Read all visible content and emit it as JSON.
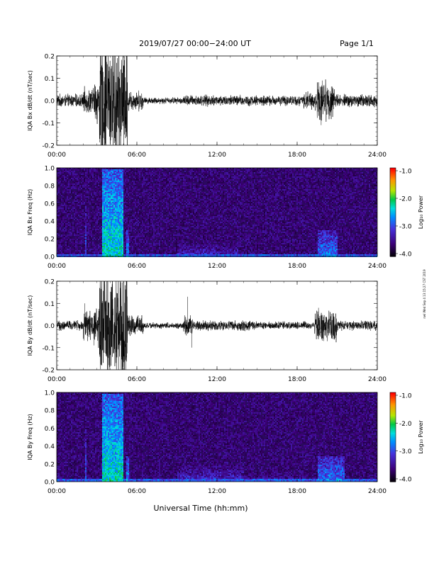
{
  "header": {
    "title": "2019/07/27  00:00−24:00 UT",
    "page": "Page 1/1"
  },
  "side_note": "nwl Wed Sep 4 13:15:27 CST 2019",
  "chart_data": [
    {
      "type": "line",
      "ylabel": "IQA Bx dB/dt (nT/sec)",
      "ylim": [
        -0.2,
        0.2
      ],
      "yticks": [
        "0.2",
        "0.1",
        "0.0",
        "-0.1",
        "-0.2"
      ],
      "xlim": [
        0,
        24
      ],
      "xticks": [
        "00:00",
        "06:00",
        "12:00",
        "18:00",
        "24:00"
      ],
      "activity": [
        {
          "start": 0.0,
          "end": 2.0,
          "amplitude": 0.025
        },
        {
          "start": 2.0,
          "end": 2.8,
          "amplitude": 0.05
        },
        {
          "start": 2.8,
          "end": 3.2,
          "amplitude": 0.09
        },
        {
          "start": 3.2,
          "end": 5.3,
          "amplitude": 0.25
        },
        {
          "start": 5.3,
          "end": 6.5,
          "amplitude": 0.04
        },
        {
          "start": 6.5,
          "end": 9.5,
          "amplitude": 0.013
        },
        {
          "start": 9.5,
          "end": 14.5,
          "amplitude": 0.022
        },
        {
          "start": 14.5,
          "end": 18.5,
          "amplitude": 0.02
        },
        {
          "start": 18.5,
          "end": 19.5,
          "amplitude": 0.035
        },
        {
          "start": 19.5,
          "end": 20.8,
          "amplitude": 0.08
        },
        {
          "start": 20.8,
          "end": 24.0,
          "amplitude": 0.025
        }
      ]
    },
    {
      "type": "heatmap",
      "ylabel": "IQA Bx Freq (Hz)",
      "ylim": [
        0.0,
        1.0
      ],
      "yticks": [
        "1.0",
        "0.8",
        "0.6",
        "0.4",
        "0.2",
        "0.0"
      ],
      "xlim": [
        0,
        24
      ],
      "xticks": [
        "00:00",
        "06:00",
        "12:00",
        "18:00",
        "24:00"
      ],
      "colorbar": {
        "label": "Log₁₀ Power",
        "ticks": [
          "-1.0",
          "-2.0",
          "-3.0",
          "-4.0"
        ],
        "range": [
          -4.0,
          -1.0
        ]
      },
      "bursts": [
        {
          "start": 2.1,
          "end": 2.2,
          "fmax": 0.6,
          "level": -2.9
        },
        {
          "start": 3.3,
          "end": 4.9,
          "fmax": 1.0,
          "level": -2.3
        },
        {
          "start": 5.1,
          "end": 5.4,
          "fmax": 0.3,
          "level": -2.6
        },
        {
          "start": 9.0,
          "end": 13.5,
          "fmax": 0.15,
          "level": -3.1
        },
        {
          "start": 19.5,
          "end": 21.0,
          "fmax": 0.3,
          "level": -2.7
        }
      ]
    },
    {
      "type": "line",
      "ylabel": "IQA By dB/dt (nT/sec)",
      "ylim": [
        -0.2,
        0.2
      ],
      "yticks": [
        "0.2",
        "0.1",
        "0.0",
        "-0.1",
        "-0.2"
      ],
      "xlim": [
        0,
        24
      ],
      "xticks": [
        "00:00",
        "06:00",
        "12:00",
        "18:00",
        "24:00"
      ],
      "activity": [
        {
          "start": 0.0,
          "end": 2.0,
          "amplitude": 0.02
        },
        {
          "start": 2.0,
          "end": 2.8,
          "amplitude": 0.06
        },
        {
          "start": 2.8,
          "end": 3.2,
          "amplitude": 0.09
        },
        {
          "start": 3.2,
          "end": 5.3,
          "amplitude": 0.25
        },
        {
          "start": 5.3,
          "end": 6.5,
          "amplitude": 0.04
        },
        {
          "start": 6.5,
          "end": 9.5,
          "amplitude": 0.012
        },
        {
          "start": 9.5,
          "end": 10.2,
          "amplitude": 0.04
        },
        {
          "start": 10.2,
          "end": 14.5,
          "amplitude": 0.02
        },
        {
          "start": 14.5,
          "end": 19.3,
          "amplitude": 0.015
        },
        {
          "start": 19.3,
          "end": 21.0,
          "amplitude": 0.06
        },
        {
          "start": 21.0,
          "end": 24.0,
          "amplitude": 0.02
        }
      ]
    },
    {
      "type": "heatmap",
      "ylabel": "IQA By Freq (Hz)",
      "ylim": [
        0.0,
        1.0
      ],
      "yticks": [
        "1.0",
        "0.8",
        "0.6",
        "0.4",
        "0.2",
        "0.0"
      ],
      "xlim": [
        0,
        24
      ],
      "xticks": [
        "00:00",
        "06:00",
        "12:00",
        "18:00",
        "24:00"
      ],
      "colorbar": {
        "label": "Log₁₀ Power",
        "ticks": [
          "-1.0",
          "-2.0",
          "-3.0",
          "-4.0"
        ],
        "range": [
          -4.0,
          -1.0
        ]
      },
      "bursts": [
        {
          "start": 2.1,
          "end": 2.2,
          "fmax": 0.6,
          "level": -2.9
        },
        {
          "start": 3.3,
          "end": 4.9,
          "fmax": 1.0,
          "level": -2.3
        },
        {
          "start": 5.1,
          "end": 5.4,
          "fmax": 0.3,
          "level": -2.6
        },
        {
          "start": 9.0,
          "end": 14.0,
          "fmax": 0.2,
          "level": -3.1
        },
        {
          "start": 14.0,
          "end": 18.5,
          "fmax": 0.12,
          "level": -3.3
        },
        {
          "start": 19.5,
          "end": 21.5,
          "fmax": 0.3,
          "level": -2.7
        }
      ]
    }
  ],
  "xlabel": "Universal Time (hh:mm)"
}
